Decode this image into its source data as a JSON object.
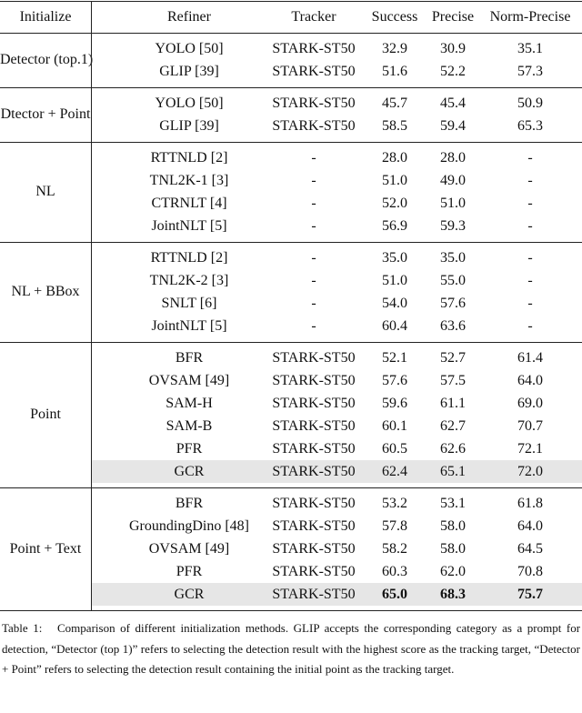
{
  "table": {
    "header": [
      "Initialize",
      "Refiner",
      "Tracker",
      "Success",
      "Precise",
      "Norm-Precise"
    ],
    "groups": [
      {
        "initialize": "Detector (top.1)",
        "rows": [
          [
            "YOLO [50]",
            "STARK-ST50",
            "32.9",
            "30.9",
            "35.1"
          ],
          [
            "GLIP [39]",
            "STARK-ST50",
            "51.6",
            "52.2",
            "57.3"
          ]
        ]
      },
      {
        "initialize": "Dtector + Point",
        "rows": [
          [
            "YOLO [50]",
            "STARK-ST50",
            "45.7",
            "45.4",
            "50.9"
          ],
          [
            "GLIP [39]",
            "STARK-ST50",
            "58.5",
            "59.4",
            "65.3"
          ]
        ]
      },
      {
        "initialize": "NL",
        "rows": [
          [
            "RTTNLD [2]",
            "-",
            "28.0",
            "28.0",
            "-"
          ],
          [
            "TNL2K-1 [3]",
            "-",
            "51.0",
            "49.0",
            "-"
          ],
          [
            "CTRNLT [4]",
            "-",
            "52.0",
            "51.0",
            "-"
          ],
          [
            "JointNLT [5]",
            "-",
            "56.9",
            "59.3",
            "-"
          ]
        ]
      },
      {
        "initialize": "NL + BBox",
        "rows": [
          [
            "RTTNLD [2]",
            "-",
            "35.0",
            "35.0",
            "-"
          ],
          [
            "TNL2K-2 [3]",
            "-",
            "51.0",
            "55.0",
            "-"
          ],
          [
            "SNLT [6]",
            "-",
            "54.0",
            "57.6",
            "-"
          ],
          [
            "JointNLT [5]",
            "-",
            "60.4",
            "63.6",
            "-"
          ]
        ]
      },
      {
        "initialize": "Point",
        "rows": [
          [
            "BFR",
            "STARK-ST50",
            "52.1",
            "52.7",
            "61.4"
          ],
          [
            "OVSAM [49]",
            "STARK-ST50",
            "57.6",
            "57.5",
            "64.0"
          ],
          [
            "SAM-H",
            "STARK-ST50",
            "59.6",
            "61.1",
            "69.0"
          ],
          [
            "SAM-B",
            "STARK-ST50",
            "60.1",
            "62.7",
            "70.7"
          ],
          [
            "PFR",
            "STARK-ST50",
            "60.5",
            "62.6",
            "72.1"
          ],
          [
            "GCR",
            "STARK-ST50",
            "62.4",
            "65.1",
            "72.0"
          ]
        ]
      },
      {
        "initialize": "Point + Text",
        "rows": [
          [
            "BFR",
            "STARK-ST50",
            "53.2",
            "53.1",
            "61.8"
          ],
          [
            "GroundingDino [48]",
            "STARK-ST50",
            "57.8",
            "58.0",
            "64.0"
          ],
          [
            "OVSAM [49]",
            "STARK-ST50",
            "58.2",
            "58.0",
            "64.5"
          ],
          [
            "PFR",
            "STARK-ST50",
            "60.3",
            "62.0",
            "70.8"
          ],
          [
            "GCR",
            "STARK-ST50",
            "65.0",
            "68.3",
            "75.7"
          ]
        ]
      }
    ],
    "caption": {
      "label": "Table 1:",
      "text": "Comparison of different initialization methods. GLIP accepts the corresponding category as a prompt for detection, “Detector (top 1)” refers to selecting the detection result with the highest score as the tracking target, “Detector + Point” refers to selecting the detection result containing the initial point as the tracking target."
    }
  }
}
